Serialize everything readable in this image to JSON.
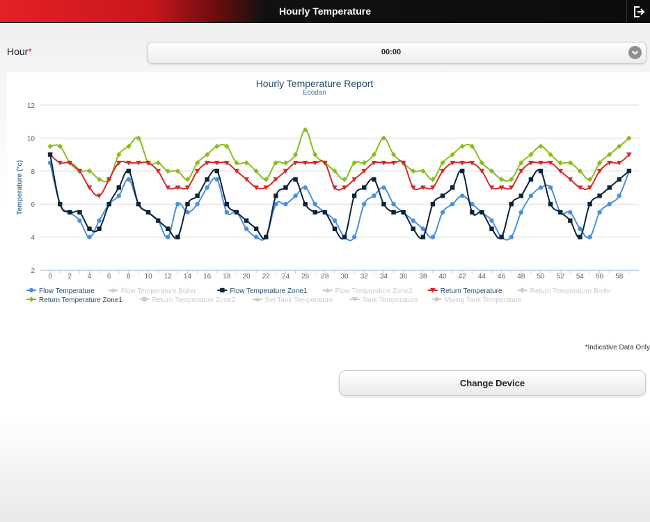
{
  "header": {
    "title": "Hourly Temperature",
    "exit_icon": "exit-icon"
  },
  "form": {
    "hour_label": "Hour",
    "required_mark": "*",
    "hour_value": "00:00"
  },
  "footer": {
    "indicative_note": "*Indicative Data Only",
    "change_device_label": "Change Device"
  },
  "chart_data": {
    "type": "line",
    "title": "Hourly Temperature Report",
    "subtitle": "Ecodan",
    "ylabel": "Temperature (°c)",
    "xlabel": "",
    "ylim": [
      2,
      12
    ],
    "yticks": [
      2,
      4,
      6,
      8,
      10,
      12
    ],
    "xlim": [
      -1,
      60
    ],
    "xticks": [
      0,
      2,
      4,
      6,
      8,
      10,
      12,
      14,
      16,
      18,
      20,
      22,
      24,
      26,
      28,
      30,
      32,
      34,
      36,
      38,
      40,
      42,
      44,
      46,
      48,
      50,
      52,
      54,
      56,
      58
    ],
    "grid": true,
    "legend_position": "bottom-left",
    "series": [
      {
        "name": "Flow Temperature",
        "color": "#4a90d9",
        "marker": "circle",
        "visible": true,
        "x": [
          0,
          1,
          2,
          3,
          4,
          5,
          6,
          7,
          8,
          9,
          10,
          11,
          12,
          13,
          14,
          15,
          16,
          17,
          18,
          19,
          20,
          21,
          22,
          23,
          24,
          25,
          26,
          27,
          28,
          29,
          30,
          31,
          32,
          33,
          34,
          35,
          36,
          37,
          38,
          39,
          40,
          41,
          42,
          43,
          44,
          45,
          46,
          47,
          48,
          49,
          50,
          51,
          52,
          53,
          54,
          55,
          56,
          57,
          58,
          59
        ],
        "values": [
          8.5,
          6,
          5.5,
          5,
          4,
          5,
          6,
          6.5,
          7.5,
          6,
          5.5,
          5,
          4,
          6,
          5.5,
          6,
          7,
          7.5,
          5.5,
          5.5,
          4.5,
          4,
          4,
          6,
          6,
          6.5,
          7,
          6,
          5.5,
          5,
          4,
          4,
          6,
          6.5,
          7,
          6,
          5.5,
          5,
          4.5,
          4,
          5.5,
          6,
          6.5,
          6,
          5.5,
          5,
          4,
          4,
          5.5,
          6.5,
          7,
          7,
          5.5,
          5.5,
          4.5,
          4,
          5.5,
          6,
          6.5,
          8
        ]
      },
      {
        "name": "Flow Temperature Boiler",
        "color": "#cccccc",
        "marker": "triangle",
        "visible": false
      },
      {
        "name": "Flow Temperature Zone1",
        "color": "#0d233a",
        "marker": "square",
        "visible": true,
        "x": [
          0,
          1,
          2,
          3,
          4,
          5,
          6,
          7,
          8,
          9,
          10,
          11,
          12,
          13,
          14,
          15,
          16,
          17,
          18,
          19,
          20,
          21,
          22,
          23,
          24,
          25,
          26,
          27,
          28,
          29,
          30,
          31,
          32,
          33,
          34,
          35,
          36,
          37,
          38,
          39,
          40,
          41,
          42,
          43,
          44,
          45,
          46,
          47,
          48,
          49,
          50,
          51,
          52,
          53,
          54,
          55,
          56,
          57,
          58,
          59
        ],
        "values": [
          9,
          6,
          5.5,
          5.5,
          4.5,
          4.5,
          6,
          7,
          8,
          6,
          5.5,
          5,
          4.5,
          4,
          6,
          6.5,
          7.5,
          8,
          6,
          5.5,
          5,
          4.5,
          4,
          6.5,
          7,
          7.5,
          6,
          5.5,
          5.5,
          4.5,
          4,
          6.5,
          7,
          7.5,
          6,
          5.5,
          5.5,
          4.5,
          4,
          6,
          6.5,
          7,
          8,
          5.5,
          5.5,
          4.5,
          4,
          6,
          6.5,
          7.5,
          8,
          6,
          5.5,
          5,
          4,
          6,
          6.5,
          7,
          7.5,
          8
        ]
      },
      {
        "name": "Flow Temperature Zone2",
        "color": "#cccccc",
        "marker": "triangle",
        "visible": false
      },
      {
        "name": "Return Temperature",
        "color": "#d42a2a",
        "marker": "triangle-down",
        "visible": true,
        "x": [
          0,
          1,
          2,
          3,
          4,
          5,
          6,
          7,
          8,
          9,
          10,
          11,
          12,
          13,
          14,
          15,
          16,
          17,
          18,
          19,
          20,
          21,
          22,
          23,
          24,
          25,
          26,
          27,
          28,
          29,
          30,
          31,
          32,
          33,
          34,
          35,
          36,
          37,
          38,
          39,
          40,
          41,
          42,
          43,
          44,
          45,
          46,
          47,
          48,
          49,
          50,
          51,
          52,
          53,
          54,
          55,
          56,
          57,
          58,
          59
        ],
        "values": [
          9,
          8.5,
          8.5,
          8,
          7,
          6.5,
          7.5,
          8.5,
          8.5,
          8.5,
          8.5,
          8,
          7,
          7,
          7,
          8,
          8.5,
          8.5,
          8.5,
          8,
          7.5,
          7,
          7,
          7.5,
          8,
          8.5,
          8.5,
          8.5,
          8.5,
          7,
          7,
          7.5,
          8,
          8.5,
          8.5,
          8.5,
          8.5,
          7,
          7,
          7,
          8,
          8.5,
          8.5,
          8.5,
          8,
          7,
          7,
          7,
          8,
          8.5,
          8.5,
          8.5,
          8,
          7.5,
          7,
          7,
          8,
          8.5,
          8.5,
          9
        ]
      },
      {
        "name": "Return Temperature Boiler",
        "color": "#cccccc",
        "marker": "circle",
        "visible": false
      },
      {
        "name": "Return Temperature Zone1",
        "color": "#8bbc21",
        "marker": "diamond",
        "visible": true,
        "x": [
          0,
          1,
          2,
          3,
          4,
          5,
          6,
          7,
          8,
          9,
          10,
          11,
          12,
          13,
          14,
          15,
          16,
          17,
          18,
          19,
          20,
          21,
          22,
          23,
          24,
          25,
          26,
          27,
          28,
          29,
          30,
          31,
          32,
          33,
          34,
          35,
          36,
          37,
          38,
          39,
          40,
          41,
          42,
          43,
          44,
          45,
          46,
          47,
          48,
          49,
          50,
          51,
          52,
          53,
          54,
          55,
          56,
          57,
          58,
          59
        ],
        "values": [
          9.5,
          9.5,
          8.5,
          8,
          8,
          7.5,
          7.5,
          9,
          9.5,
          10,
          8.5,
          8.5,
          8,
          8,
          7.5,
          8.5,
          9,
          9.5,
          9.5,
          8.5,
          8.5,
          8,
          7.5,
          8.5,
          8.5,
          9,
          10.5,
          9,
          8.5,
          8,
          7.5,
          8.5,
          8.5,
          9,
          10,
          9,
          8.5,
          8,
          8,
          7.5,
          8.5,
          9,
          9.5,
          9.5,
          8.5,
          8,
          7.5,
          7.5,
          8.5,
          9,
          9.5,
          9,
          8.5,
          8.5,
          8,
          7.5,
          8.5,
          9,
          9.5,
          10
        ]
      },
      {
        "name": "Return Temperature Zone2",
        "color": "#cccccc",
        "marker": "square",
        "visible": false
      },
      {
        "name": "Set Tank Temperature",
        "color": "#cccccc",
        "marker": "triangle",
        "visible": false
      },
      {
        "name": "Tank Temperature",
        "color": "#cccccc",
        "marker": "triangle-down",
        "visible": false
      },
      {
        "name": "Mixing Tank Temperature",
        "color": "#cccccc",
        "marker": "circle",
        "visible": false
      }
    ]
  }
}
